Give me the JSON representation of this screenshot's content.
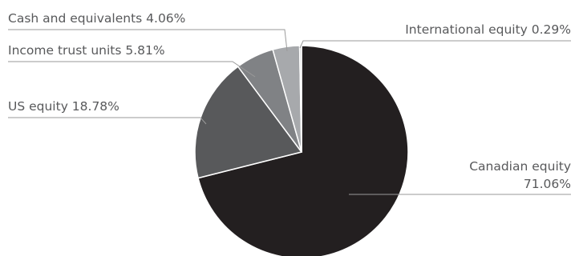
{
  "chart_data": {
    "type": "pie",
    "title": "",
    "start": "12 o'clock",
    "direction": "clockwise",
    "slices": [
      {
        "label": "Canadian equity",
        "value": 71.06,
        "display_lines": [
          "Canadian equity",
          "71.06%"
        ],
        "color": "#231f20"
      },
      {
        "label": "US equity",
        "value": 18.78,
        "display_lines": [
          "US equity 18.78%"
        ],
        "color": "#58595b"
      },
      {
        "label": "Income trust units",
        "value": 5.81,
        "display_lines": [
          "Income trust units 5.81%"
        ],
        "color": "#808285"
      },
      {
        "label": "Cash and equivalents",
        "value": 4.06,
        "display_lines": [
          "Cash and equivalents 4.06%"
        ],
        "color": "#a7a9ac"
      },
      {
        "label": "International equity",
        "value": 0.29,
        "display_lines": [
          "International equity 0.29%"
        ],
        "color": "#d1d3d4"
      }
    ]
  }
}
